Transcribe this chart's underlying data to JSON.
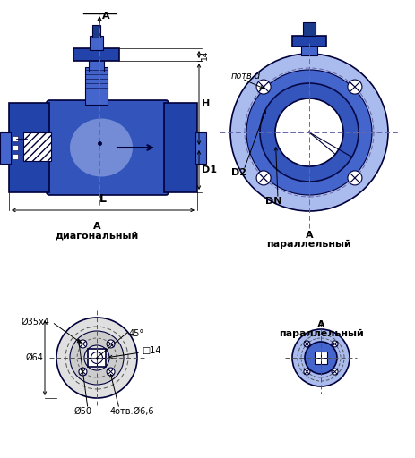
{
  "bg_color": "#ffffff",
  "blue_dark": "#1a3a8a",
  "blue_mid": "#4466cc",
  "blue_light": "#aabbee",
  "blue_fill": "#8899dd",
  "blue_flange": "#2244aa",
  "blue_body": "#3355bb",
  "line_color": "#00003a",
  "dim_color": "#000000",
  "labels": {
    "A_arrow": "А",
    "l14": "14",
    "H": "H",
    "D1": "D1",
    "L": "L",
    "potv_d": "потв.d",
    "D2": "D2",
    "DN": "DN",
    "d35x4": "Ø35х4",
    "d64": "Ø64",
    "d50": "Ø50",
    "angle45": "45°",
    "sq14": "□14",
    "holes": "4отв.Ø6,6",
    "title_diag_1": "А",
    "title_diag_2": "диагональный",
    "title_par_1": "А",
    "title_par_2": "параллельный"
  }
}
